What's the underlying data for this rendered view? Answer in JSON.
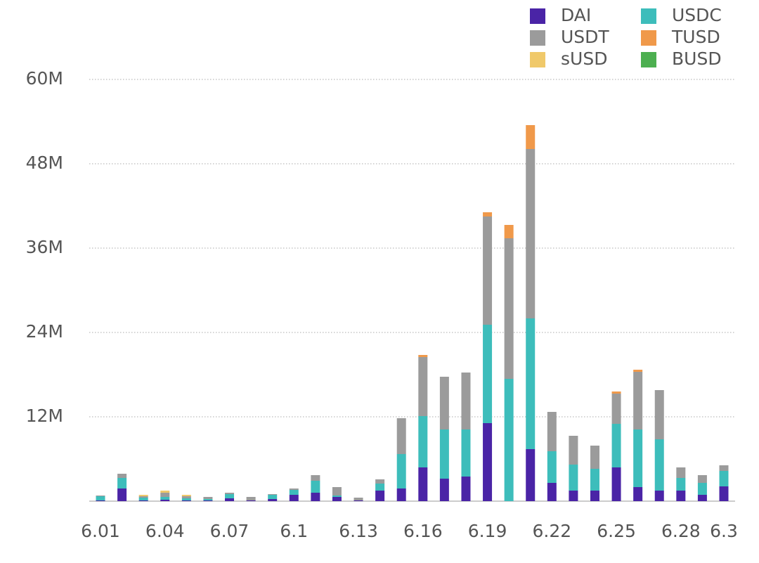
{
  "chart_data": {
    "type": "stacked-bar",
    "categories": [
      "6.01",
      null,
      null,
      "6.04",
      null,
      null,
      "6.07",
      null,
      null,
      "6.1",
      null,
      null,
      "6.13",
      null,
      null,
      "6.16",
      null,
      null,
      "6.19",
      null,
      null,
      "6.22",
      null,
      null,
      "6.25",
      null,
      null,
      "6.28",
      null,
      "6.3"
    ],
    "series": [
      {
        "name": "DAI",
        "color": "#4a24a6",
        "values": [
          0.1,
          1.8,
          0.1,
          0.2,
          0.1,
          0.1,
          0.4,
          0.1,
          0.3,
          0.9,
          1.2,
          0.6,
          0.1,
          1.5,
          1.8,
          4.8,
          3.2,
          3.5,
          11.1,
          0,
          7.4,
          2.6,
          1.5,
          1.5,
          4.8,
          2.0,
          1.5,
          1.5,
          0.9,
          2.1
        ]
      },
      {
        "name": "USDC",
        "color": "#3dbdbb",
        "values": [
          0.6,
          1.5,
          0.4,
          0.4,
          0.3,
          0.2,
          0.6,
          0,
          0.6,
          0.7,
          1.7,
          0.2,
          0,
          1.0,
          4.9,
          7.3,
          7.0,
          6.7,
          14.0,
          17.4,
          18.6,
          4.5,
          3.7,
          3.1,
          6.2,
          8.2,
          7.3,
          1.8,
          1.7,
          2.2
        ]
      },
      {
        "name": "USDT",
        "color": "#9b9b9b",
        "values": [
          0.1,
          0.6,
          0.2,
          0.6,
          0.3,
          0.3,
          0.2,
          0.5,
          0.1,
          0.2,
          0.8,
          1.2,
          0.4,
          0.6,
          5.1,
          8.4,
          7.5,
          8.1,
          15.4,
          20.0,
          24.1,
          5.6,
          4.1,
          3.3,
          4.3,
          8.2,
          7.0,
          1.5,
          1.1,
          0.8
        ]
      },
      {
        "name": "TUSD",
        "color": "#f0994a",
        "values": [
          0,
          0,
          0,
          0,
          0,
          0,
          0,
          0,
          0,
          0,
          0,
          0,
          0,
          0,
          0,
          0.3,
          0,
          0,
          0.6,
          1.9,
          3.4,
          0,
          0,
          0,
          0.3,
          0.3,
          0,
          0,
          0,
          0
        ]
      },
      {
        "name": "sUSD",
        "color": "#f0c96a",
        "values": [
          0,
          0,
          0.2,
          0.3,
          0.2,
          0,
          0,
          0,
          0,
          0,
          0,
          0,
          0,
          0,
          0,
          0,
          0,
          0,
          0,
          0,
          0,
          0,
          0,
          0,
          0,
          0,
          0,
          0,
          0,
          0
        ]
      },
      {
        "name": "BUSD",
        "color": "#4caf50",
        "values": [
          0,
          0,
          0,
          0,
          0,
          0,
          0,
          0,
          0,
          0,
          0,
          0,
          0,
          0,
          0,
          0,
          0,
          0,
          0,
          0,
          0,
          0,
          0,
          0,
          0,
          0,
          0,
          0,
          0,
          0
        ]
      }
    ],
    "ylim": [
      0,
      60
    ],
    "yticks": [
      {
        "value": 12,
        "label": "12M"
      },
      {
        "value": 24,
        "label": "24M"
      },
      {
        "value": 36,
        "label": "36M"
      },
      {
        "value": 48,
        "label": "48M"
      },
      {
        "value": 60,
        "label": "60M"
      }
    ],
    "grid": true
  }
}
